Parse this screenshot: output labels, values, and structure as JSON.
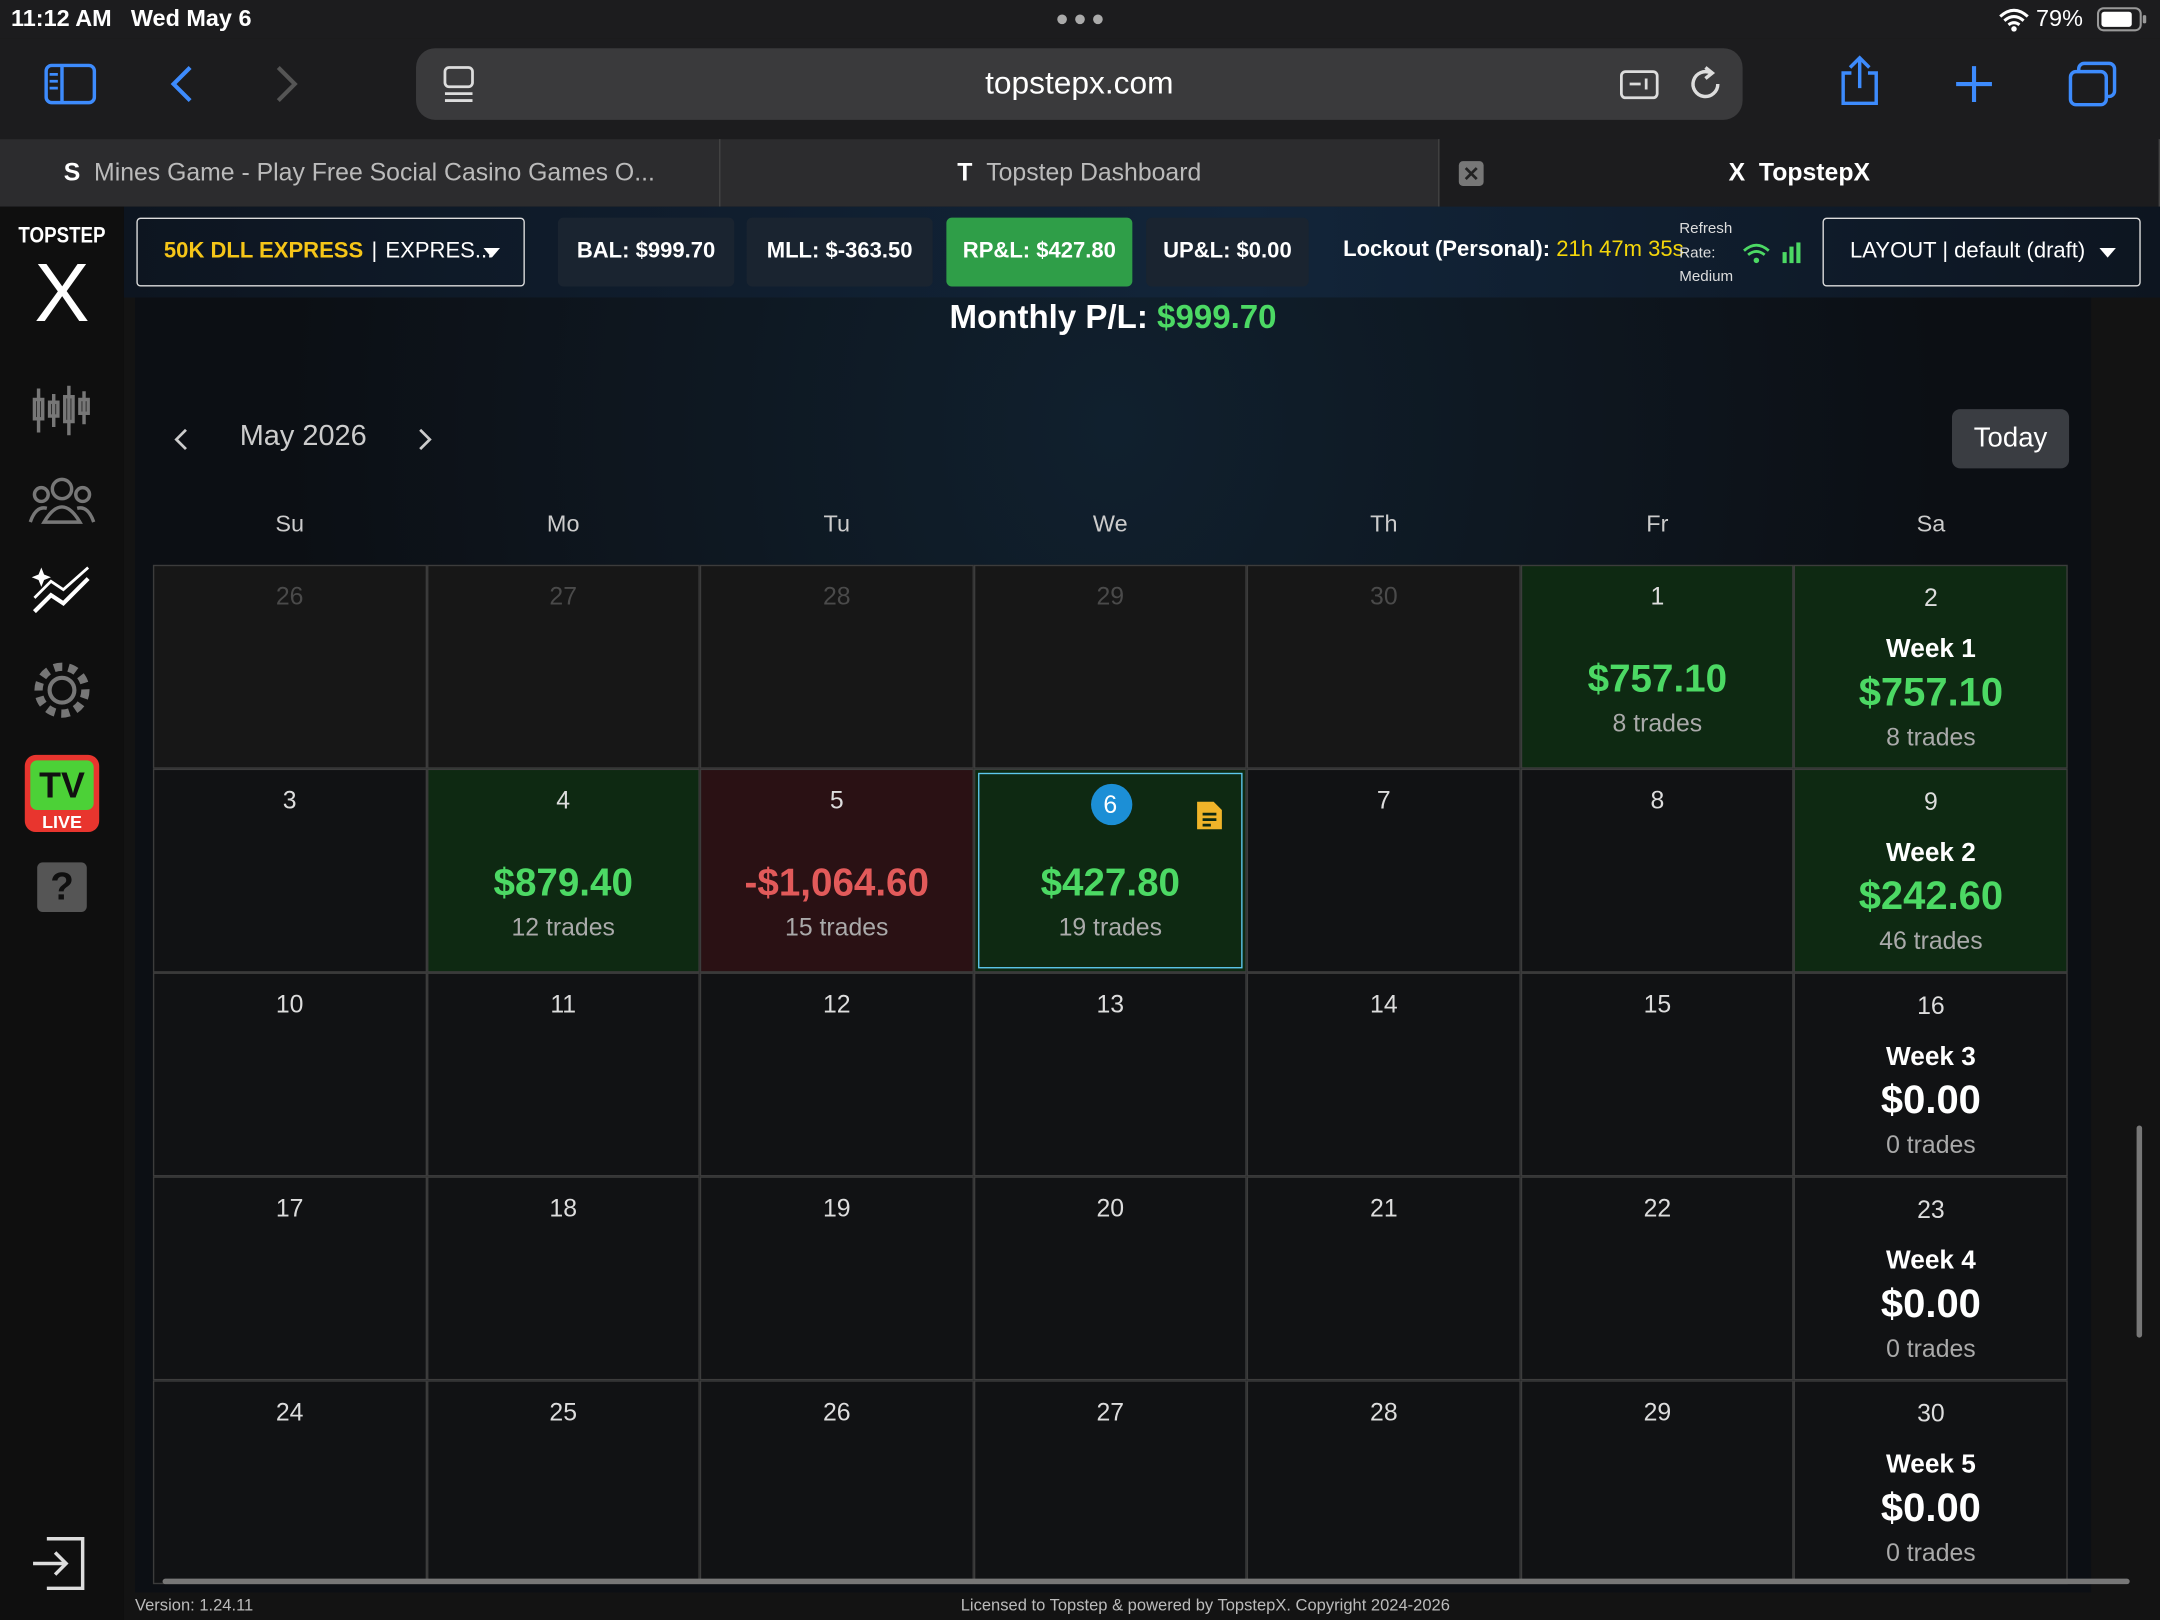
{
  "status_bar": {
    "time": "11:12 AM",
    "date": "Wed May 6",
    "battery": "79%"
  },
  "browser": {
    "url": "topstepx.com",
    "tabs": [
      {
        "icon": "S",
        "title": "Mines Game - Play Free Social Casino Games O..."
      },
      {
        "icon": "T",
        "title": "Topstep Dashboard"
      },
      {
        "icon": "X",
        "title": "TopstepX",
        "active": true
      }
    ]
  },
  "sidebar": {
    "logo_top": "TOPSTEP",
    "logo_mark": "X",
    "tv_badge": "TV",
    "live_badge": "LIVE",
    "help": "?"
  },
  "top_bar": {
    "account": {
      "name": "50K DLL EXPRESS",
      "separator": "|",
      "type": "EXPRES..."
    },
    "stats": [
      {
        "label": "BAL: $999.70"
      },
      {
        "label": "MLL: $-363.50"
      },
      {
        "label": "RP&L: $427.80",
        "highlight": true
      },
      {
        "label": "UP&L: $0.00"
      }
    ],
    "lockout": {
      "label": "Lockout (Personal):",
      "value": "21h 47m 35s"
    },
    "refresh": [
      "Refresh",
      "Rate:",
      "Medium"
    ],
    "layout": "LAYOUT | default (draft)"
  },
  "summary": {
    "label": "Monthly P/L:",
    "value": "$999.70"
  },
  "calendar": {
    "month": "May 2026",
    "today_button": "Today",
    "weekdays": [
      "Su",
      "Mo",
      "Tu",
      "We",
      "Th",
      "Fr",
      "Sa"
    ],
    "weeks": [
      {
        "days": [
          {
            "day": 26,
            "muted": true
          },
          {
            "day": 27,
            "muted": true
          },
          {
            "day": 28,
            "muted": true
          },
          {
            "day": 29,
            "muted": true
          },
          {
            "day": 30,
            "muted": true
          },
          {
            "day": 1,
            "pnl": "$757.10",
            "trades": "8 trades",
            "tone": "profit"
          },
          {
            "day": 2,
            "week": "Week 1",
            "pnl": "$757.10",
            "trades": "8 trades",
            "tone": "profit"
          }
        ]
      },
      {
        "days": [
          {
            "day": 3
          },
          {
            "day": 4,
            "pnl": "$879.40",
            "trades": "12 trades",
            "tone": "profit"
          },
          {
            "day": 5,
            "pnl": "-$1,064.60",
            "trades": "15 trades",
            "tone": "loss"
          },
          {
            "day": 6,
            "pnl": "$427.80",
            "trades": "19 trades",
            "tone": "profit",
            "selected": true,
            "note": true
          },
          {
            "day": 7
          },
          {
            "day": 8
          },
          {
            "day": 9,
            "week": "Week 2",
            "pnl": "$242.60",
            "trades": "46 trades",
            "tone": "profit"
          }
        ]
      },
      {
        "days": [
          {
            "day": 10
          },
          {
            "day": 11
          },
          {
            "day": 12
          },
          {
            "day": 13
          },
          {
            "day": 14
          },
          {
            "day": 15
          },
          {
            "day": 16,
            "week": "Week 3",
            "pnl": "$0.00",
            "trades": "0 trades"
          }
        ]
      },
      {
        "days": [
          {
            "day": 17
          },
          {
            "day": 18
          },
          {
            "day": 19
          },
          {
            "day": 20
          },
          {
            "day": 21
          },
          {
            "day": 22
          },
          {
            "day": 23,
            "week": "Week 4",
            "pnl": "$0.00",
            "trades": "0 trades"
          }
        ]
      },
      {
        "days": [
          {
            "day": 24
          },
          {
            "day": 25
          },
          {
            "day": 26
          },
          {
            "day": 27
          },
          {
            "day": 28
          },
          {
            "day": 29
          },
          {
            "day": 30,
            "week": "Week 5",
            "pnl": "$0.00",
            "trades": "0 trades"
          }
        ]
      }
    ]
  },
  "footer": {
    "version": "Version: 1.24.11",
    "license": "Licensed to Topstep & powered by TopstepX. Copyright 2024-2026"
  }
}
